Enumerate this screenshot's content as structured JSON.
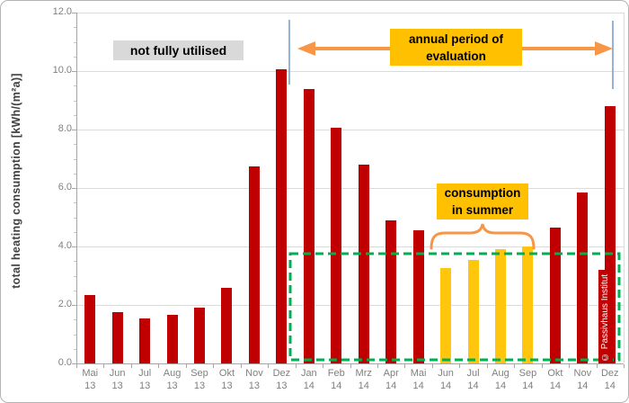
{
  "chart_data": {
    "type": "bar",
    "title": "",
    "ylabel": "total heating consumption [kWh/(m²a)]",
    "ylim": [
      0,
      12
    ],
    "ytick_step": 2.0,
    "ytick_minor_step": 0.5,
    "ytick_decimals": 1,
    "grid": "horizontal major gridlines on",
    "legend": "none",
    "categories": [
      {
        "month": "Mai",
        "year": "13"
      },
      {
        "month": "Jun",
        "year": "13"
      },
      {
        "month": "Jul",
        "year": "13"
      },
      {
        "month": "Aug",
        "year": "13"
      },
      {
        "month": "Sep",
        "year": "13"
      },
      {
        "month": "Okt",
        "year": "13"
      },
      {
        "month": "Nov",
        "year": "13"
      },
      {
        "month": "Dez",
        "year": "13"
      },
      {
        "month": "Jan",
        "year": "14"
      },
      {
        "month": "Feb",
        "year": "14"
      },
      {
        "month": "Mrz",
        "year": "14"
      },
      {
        "month": "Apr",
        "year": "14"
      },
      {
        "month": "Mai",
        "year": "14"
      },
      {
        "month": "Jun",
        "year": "14"
      },
      {
        "month": "Jul",
        "year": "14"
      },
      {
        "month": "Aug",
        "year": "14"
      },
      {
        "month": "Sep",
        "year": "14"
      },
      {
        "month": "Okt",
        "year": "14"
      },
      {
        "month": "Nov",
        "year": "14"
      },
      {
        "month": "Dez",
        "year": "14"
      }
    ],
    "values": [
      2.35,
      1.75,
      1.55,
      1.65,
      1.9,
      2.6,
      6.75,
      10.05,
      9.4,
      8.05,
      6.8,
      4.9,
      4.55,
      3.25,
      3.55,
      3.9,
      4.0,
      4.65,
      5.85,
      8.8
    ],
    "bar_kinds": [
      "heating",
      "heating",
      "heating",
      "heating",
      "heating",
      "heating",
      "heating",
      "heating",
      "heating",
      "heating",
      "heating",
      "heating",
      "heating",
      "summer",
      "summer",
      "summer",
      "summer",
      "heating",
      "heating",
      "heating"
    ]
  },
  "annotations": {
    "not_fully_utilised": "not fully utilised",
    "annual_period_line1": "annual period of",
    "annual_period_line2": "evaluation",
    "summer_line1": "consumption",
    "summer_line2": "in summer",
    "watermark": "© Passivhaus Institut",
    "evaluation_region_top_value": 3.7
  },
  "colors": {
    "heating_bar": "#c00000",
    "summer_bar": "#ffc60d",
    "label_box_yellow": "#ffc000",
    "label_box_gray": "#d9d9d9",
    "evaluation_outline": "#00b050",
    "arrow_orange": "#f79646",
    "marker_line_blue": "#95b3d7",
    "gridline": "#dbdbdb",
    "axis": "#a6a6a6",
    "tick_text": "#7f7f7f",
    "axis_title_text": "#404040"
  }
}
